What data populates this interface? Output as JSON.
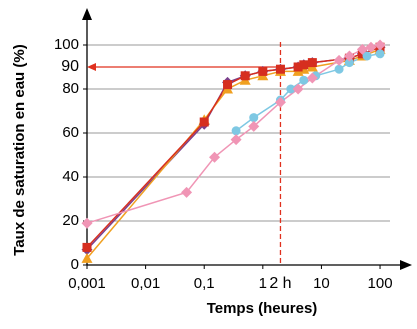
{
  "chart_data": {
    "type": "line",
    "x_label": "Temps (heures)",
    "y_label": "Taux de saturation en eau (%)",
    "xscale": "log",
    "xlim": [
      0.001,
      300
    ],
    "xticks": [
      {
        "value": 0.001,
        "label": "0,001"
      },
      {
        "value": 0.01,
        "label": "0,01"
      },
      {
        "value": 0.1,
        "label": "0,1"
      },
      1,
      10,
      100
    ],
    "ylim": [
      0,
      115
    ],
    "yticks": [
      0,
      20,
      40,
      60,
      80,
      100
    ],
    "grid": true,
    "series": [
      {
        "color": "#7b3f8c",
        "marker": "diamond",
        "x": [
          0.001,
          0.1,
          0.25,
          0.5,
          1,
          2,
          4,
          5,
          7,
          30,
          50,
          100
        ],
        "values": [
          7,
          64,
          83,
          86,
          88,
          89,
          90,
          91,
          92,
          94,
          96,
          99
        ]
      },
      {
        "color": "#f0a020",
        "marker": "triangle",
        "x": [
          0.001,
          0.1,
          0.25,
          0.5,
          1,
          2,
          4,
          5,
          7,
          30,
          50,
          100
        ],
        "values": [
          3,
          66,
          80,
          84,
          86,
          88,
          88,
          89,
          90,
          93,
          95,
          98
        ]
      },
      {
        "color": "#d62e1f",
        "marker": "square",
        "x": [
          0.001,
          0.1,
          0.25,
          0.5,
          1,
          2,
          4,
          5,
          7,
          30,
          50,
          100
        ],
        "values": [
          8,
          65,
          82,
          86,
          88,
          89,
          90,
          91,
          92,
          94,
          96,
          99
        ]
      },
      {
        "color": "#7ec8e3",
        "marker": "circle",
        "x": [
          0.35,
          0.7,
          2,
          3,
          5,
          8,
          20,
          30,
          60,
          100
        ],
        "values": [
          61,
          67,
          75,
          80,
          84,
          86,
          89,
          92,
          95,
          96
        ]
      },
      {
        "color": "#f095b5",
        "marker": "diamond",
        "x": [
          0.001,
          0.05,
          0.15,
          0.35,
          0.7,
          2,
          4,
          7,
          20,
          30,
          50,
          70,
          100
        ],
        "values": [
          19,
          33,
          49,
          57,
          63,
          74,
          80,
          85,
          93,
          95,
          98,
          99,
          100
        ]
      }
    ],
    "annotations": [
      {
        "text": "90",
        "y": 90,
        "color": "#e0301e"
      },
      {
        "text": "2 h",
        "x": 2,
        "color": "#e0301e"
      }
    ]
  }
}
